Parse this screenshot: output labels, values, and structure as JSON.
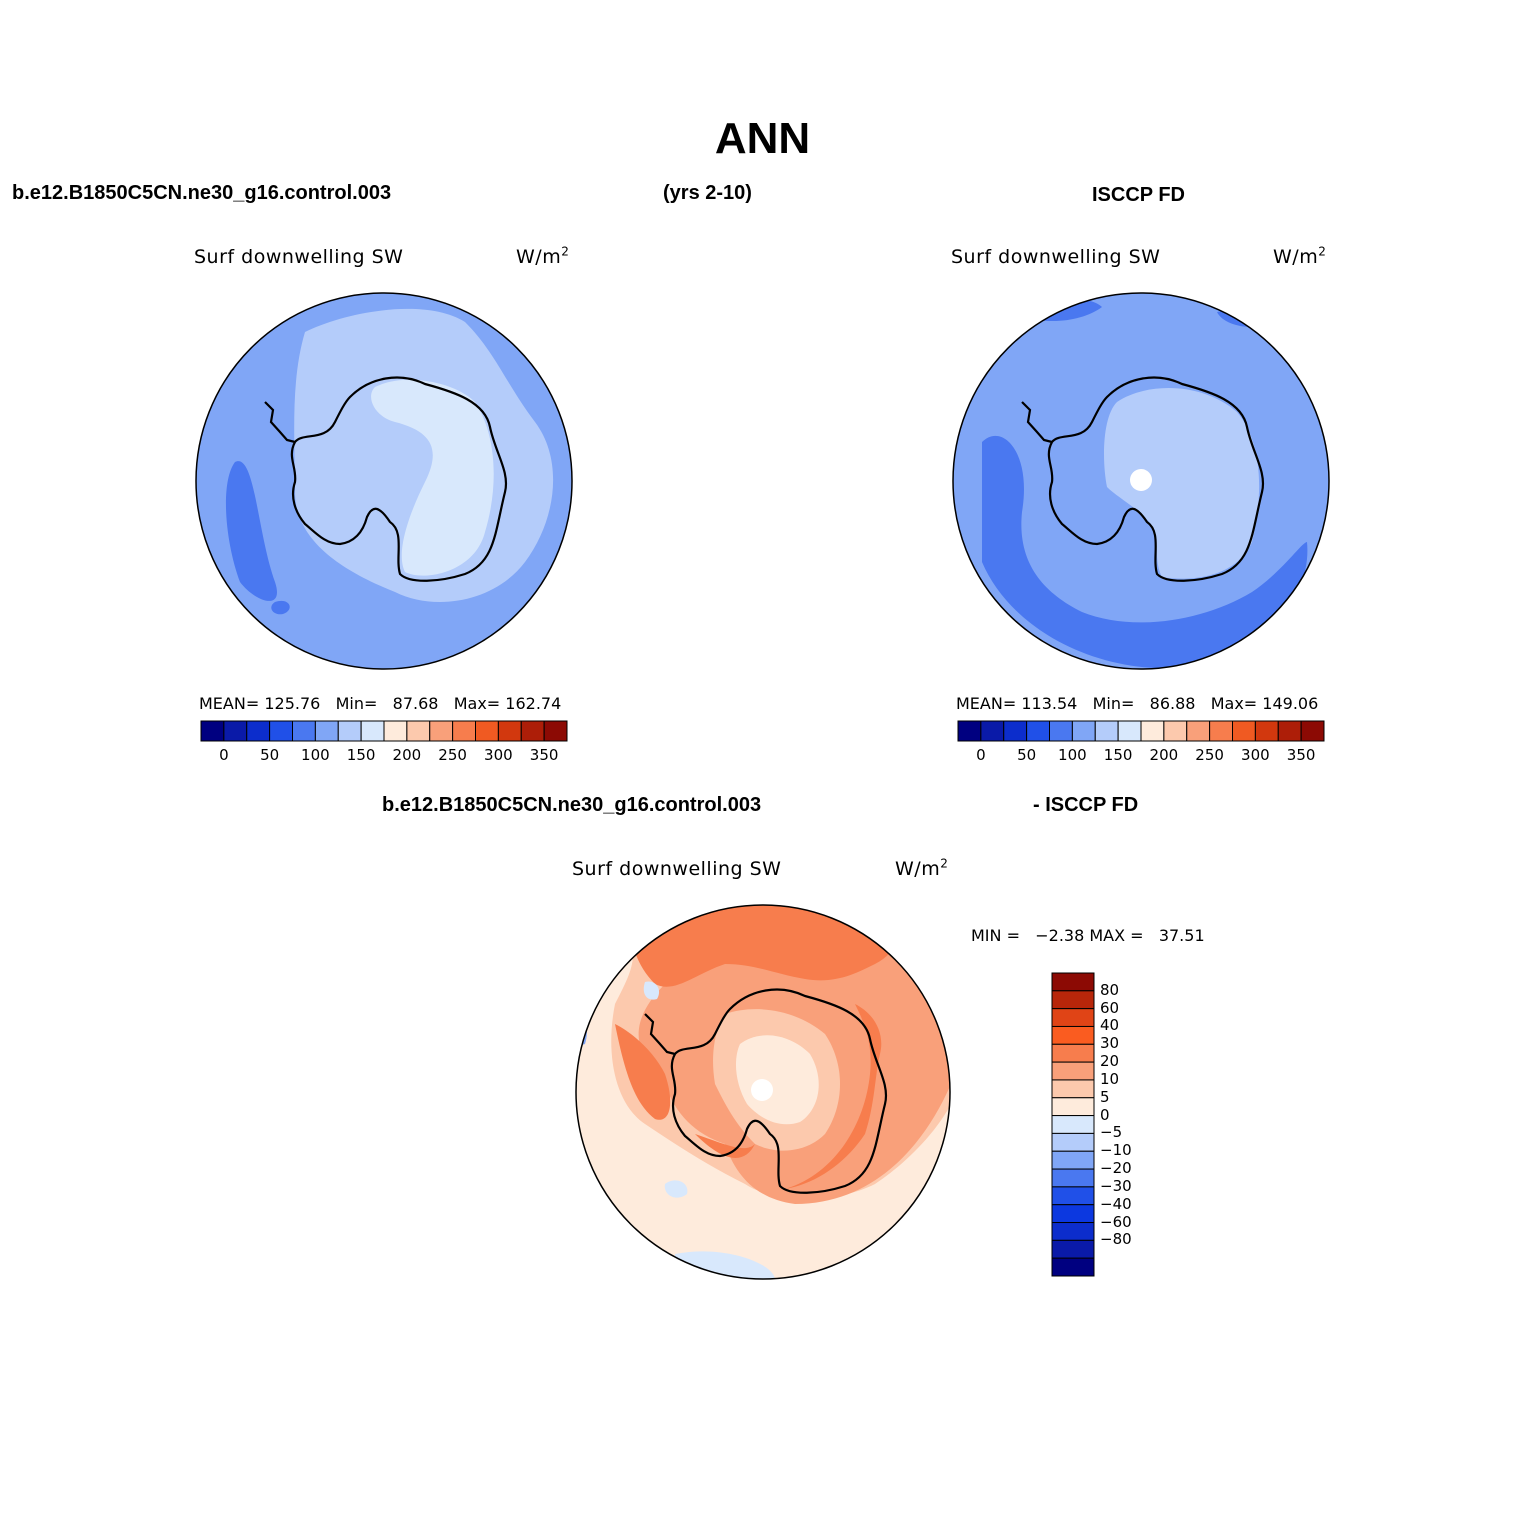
{
  "title": "ANN",
  "top_left_case": "b.e12.B1850C5CN.ne30_g16.control.003",
  "years": "(yrs 2-10)",
  "top_right_obs": "ISCCP FD",
  "panels": [
    {
      "variable": "Surf downwelling SW",
      "units": "W/m",
      "units_exp": "2",
      "stats": {
        "mean_label": "MEAN=",
        "mean": "125.76",
        "min_label": "Min=",
        "min": "87.68",
        "max_label": "Max=",
        "max": "162.74"
      }
    },
    {
      "variable": "Surf downwelling SW",
      "units": "W/m",
      "units_exp": "2",
      "stats": {
        "mean_label": "MEAN=",
        "mean": "113.54",
        "min_label": "Min=",
        "min": "86.88",
        "max_label": "Max=",
        "max": "149.06"
      }
    }
  ],
  "abs_colorbar": {
    "colors": [
      "#000080",
      "#0a1aa8",
      "#0c2dcc",
      "#2050e8",
      "#4a78f0",
      "#80a6f6",
      "#b4ccfa",
      "#d8e8fc",
      "#feebdc",
      "#fcc9ad",
      "#f9a07a",
      "#f77d4d",
      "#f05a22",
      "#d2380e",
      "#ad1e08",
      "#8c0a04"
    ],
    "ticks": [
      "0",
      "50",
      "100",
      "150",
      "200",
      "250",
      "300",
      "350"
    ]
  },
  "diff": {
    "case_label": "b.e12.B1850C5CN.ne30_g16.control.003",
    "obs_label": "- ISCCP FD",
    "variable": "Surf downwelling SW",
    "units": "W/m",
    "units_exp": "2",
    "minmax": "MIN =   −2.38 MAX =   37.51",
    "colorbar": {
      "colors_top_to_bottom": [
        "#8c0a04",
        "#b8260a",
        "#e04416",
        "#fa5c20",
        "#f77d4d",
        "#f9a07a",
        "#fcc9ad",
        "#feebdc",
        "#d8e8fc",
        "#b4ccfa",
        "#80a6f6",
        "#4a78f0",
        "#2050e8",
        "#0c38e0",
        "#0c2dcc",
        "#0a1aa8",
        "#000080"
      ],
      "ticks": [
        "80",
        "60",
        "40",
        "30",
        "20",
        "10",
        "5",
        "0",
        "−5",
        "−10",
        "−20",
        "−30",
        "−40",
        "−60",
        "−80"
      ]
    }
  },
  "map_colors": {
    "deep": "#4a78f0",
    "mid": "#80a6f6",
    "light": "#b4ccfa",
    "pale": "#d8e8fc",
    "diff_pale": "#feebdc",
    "diff_light": "#fcc9ad",
    "diff_mid": "#f9a07a",
    "diff_strong": "#f77d4d",
    "diff_deep": "#f05a22"
  }
}
